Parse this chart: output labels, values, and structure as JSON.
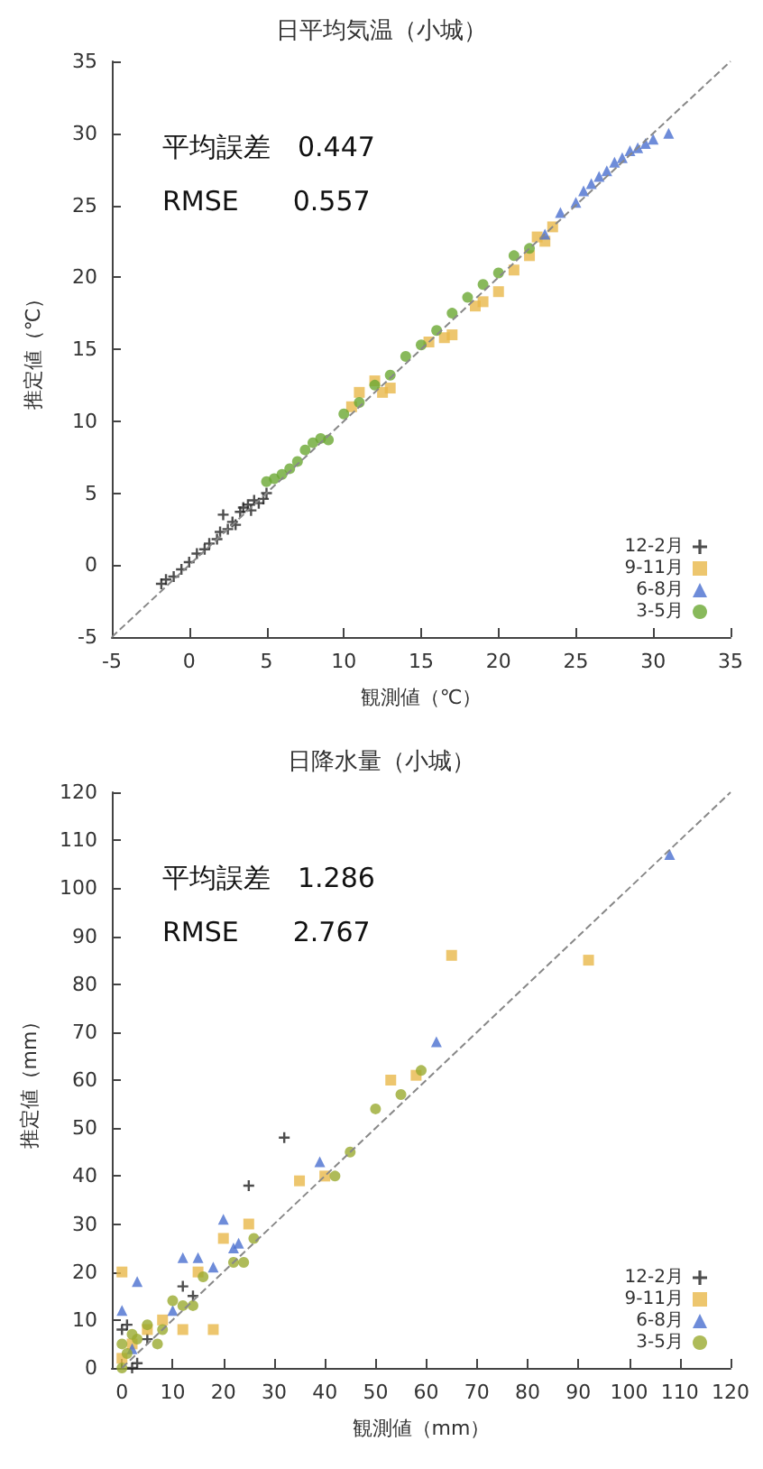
{
  "chart_data": [
    {
      "type": "scatter",
      "title": "日平均気温（小城）",
      "xlabel": "観測値（℃）",
      "ylabel": "推定値（℃）",
      "annotations": [
        "平均誤差　0.447",
        "RMSE　　0.557"
      ],
      "xlim": [
        -5,
        35
      ],
      "ylim": [
        -5,
        35
      ],
      "xticks": [
        -5,
        0,
        5,
        10,
        15,
        20,
        25,
        30,
        35
      ],
      "yticks": [
        -5,
        0,
        5,
        10,
        15,
        20,
        25,
        30,
        35
      ],
      "grid": false,
      "legend": "bottom right",
      "series": [
        {
          "type": "line",
          "color": "#888888",
          "line_style": "dashed",
          "marker": "none",
          "x": [
            -5,
            35
          ],
          "values": [
            -5,
            35
          ]
        },
        {
          "name": "12-2月",
          "color": "#222222",
          "marker": "cross",
          "x": [
            -1.8,
            -1.5,
            -1,
            -0.5,
            0,
            0.5,
            1,
            1.3,
            1.8,
            2,
            2.5,
            2.8,
            3,
            3.3,
            3.5,
            3.8,
            4,
            4.2,
            4.5,
            4.8,
            5,
            2.2
          ],
          "values": [
            -1.3,
            -1,
            -0.8,
            -0.3,
            0.2,
            0.8,
            1.1,
            1.5,
            1.8,
            2.3,
            2.5,
            3,
            2.8,
            3.7,
            4,
            4.2,
            3.8,
            4.5,
            4.3,
            4.6,
            5,
            3.5
          ]
        },
        {
          "name": "9-11月",
          "color": "#e8b84a",
          "marker": "square",
          "x": [
            10.5,
            11,
            12,
            12.5,
            13,
            15.5,
            16.5,
            17,
            18.5,
            19,
            20,
            21,
            22,
            22.5,
            23,
            23.5
          ],
          "values": [
            11,
            12,
            12.8,
            12,
            12.3,
            15.5,
            15.8,
            16,
            18,
            18.3,
            19,
            20.5,
            21.5,
            22.8,
            22.5,
            23.5
          ]
        },
        {
          "name": "6-8月",
          "color": "#4a6fd0",
          "marker": "triangle",
          "x": [
            23,
            24,
            25,
            25.5,
            26,
            26.5,
            27,
            27.5,
            28,
            28.5,
            29,
            29.5,
            30,
            31
          ],
          "values": [
            23,
            24.5,
            25.2,
            26,
            26.5,
            27,
            27.4,
            28,
            28.3,
            28.8,
            29,
            29.3,
            29.6,
            30
          ]
        },
        {
          "name": "3-5月",
          "color": "#6aa832",
          "marker": "circle",
          "x": [
            5,
            5.5,
            6,
            6.5,
            7,
            7.5,
            8,
            8.5,
            9,
            10,
            11,
            12,
            13,
            14,
            15,
            16,
            17,
            18,
            19,
            20,
            21,
            22
          ],
          "values": [
            5.8,
            6,
            6.3,
            6.7,
            7.2,
            8,
            8.5,
            8.8,
            8.7,
            10.5,
            11.3,
            12.5,
            13.2,
            14.5,
            15.3,
            16.3,
            17.5,
            18.6,
            19.5,
            20.3,
            21.5,
            22
          ]
        }
      ]
    },
    {
      "type": "scatter",
      "title": "日降水量（小城）",
      "xlabel": "観測値（mm）",
      "ylabel": "推定値（mm）",
      "annotations": [
        "平均誤差　1.286",
        "RMSE　　2.767"
      ],
      "xlim": [
        -2,
        120
      ],
      "ylim": [
        0,
        120
      ],
      "xticks": [
        0,
        10,
        20,
        30,
        40,
        50,
        60,
        70,
        80,
        90,
        100,
        110,
        120
      ],
      "yticks": [
        0,
        10,
        20,
        30,
        40,
        50,
        60,
        70,
        80,
        90,
        100,
        110,
        120
      ],
      "grid": false,
      "legend": "bottom right",
      "series": [
        {
          "type": "line",
          "color": "#888888",
          "line_style": "dashed",
          "marker": "none",
          "x": [
            0,
            120
          ],
          "values": [
            0,
            120
          ]
        },
        {
          "name": "12-2月",
          "color": "#222222",
          "marker": "cross",
          "x": [
            0,
            1,
            2,
            12,
            25,
            32,
            3,
            5,
            14
          ],
          "values": [
            8,
            9,
            0,
            17,
            38,
            48,
            1,
            6,
            15
          ]
        },
        {
          "name": "9-11月",
          "color": "#e8b84a",
          "marker": "square",
          "x": [
            0,
            0,
            2,
            5,
            8,
            12,
            18,
            20,
            25,
            35,
            40,
            53,
            58,
            65,
            92,
            15
          ],
          "values": [
            20,
            2,
            5,
            8,
            10,
            8,
            8,
            27,
            30,
            39,
            40,
            60,
            61,
            86,
            85,
            20
          ]
        },
        {
          "name": "6-8月",
          "color": "#4a6fd0",
          "marker": "triangle",
          "x": [
            0,
            3,
            10,
            12,
            15,
            18,
            20,
            23,
            39,
            62,
            108,
            2,
            22
          ],
          "values": [
            12,
            18,
            12,
            23,
            23,
            21,
            31,
            26,
            43,
            68,
            107,
            4,
            25
          ]
        },
        {
          "name": "3-5月",
          "color": "#9aaa30",
          "marker": "circle",
          "x": [
            0,
            0,
            1,
            2,
            5,
            8,
            10,
            12,
            14,
            16,
            22,
            24,
            26,
            45,
            50,
            55,
            59,
            3,
            7,
            42
          ],
          "values": [
            0,
            5,
            3,
            7,
            9,
            8,
            14,
            13,
            13,
            19,
            22,
            22,
            27,
            45,
            54,
            57,
            62,
            6,
            5,
            40
          ]
        }
      ]
    }
  ]
}
